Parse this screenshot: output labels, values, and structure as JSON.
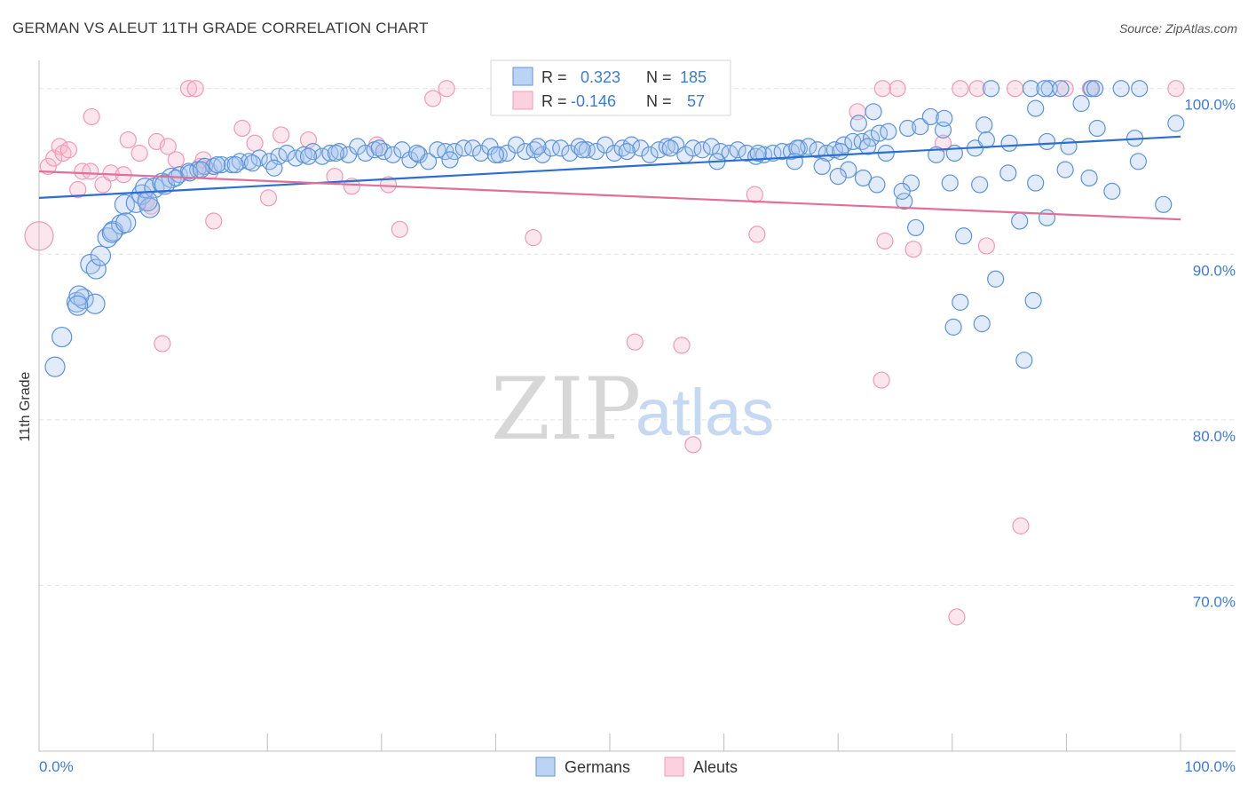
{
  "title": "GERMAN VS ALEUT 11TH GRADE CORRELATION CHART",
  "source": "Source: ZipAtlas.com",
  "watermark": {
    "zip": "ZIP",
    "atlas": "atlas"
  },
  "chart_data": {
    "type": "scatter",
    "ylabel": "11th Grade",
    "xlabel": "",
    "xlim": [
      0,
      100
    ],
    "ylim": [
      60,
      101.7
    ],
    "x_tick_labels": [
      "0.0%",
      "100.0%"
    ],
    "y_ticks": [
      70,
      80,
      90,
      100
    ],
    "y_tick_labels": [
      "70.0%",
      "80.0%",
      "90.0%",
      "100.0%"
    ],
    "grid": true,
    "legend_position": "bottom-center",
    "colors": {
      "Germans": "#5b93dc",
      "Aleuts": "#f09ab8",
      "germans_line": "#2d6fd1",
      "aleuts_line": "#e0709a",
      "grid": "#e4e4e4"
    },
    "stats": [
      {
        "r_label": "R =",
        "r_value": "0.323",
        "n_label": "N =",
        "n_value": "185"
      },
      {
        "r_label": "R =",
        "r_value": "-0.146",
        "n_label": "N =",
        "n_value": "57"
      }
    ],
    "series": [
      {
        "name": "Germans",
        "trend": {
          "x": [
            0,
            100
          ],
          "y": [
            93.4,
            97.1
          ]
        },
        "points": [
          [
            1.4,
            83.2
          ],
          [
            2.0,
            85.0
          ],
          [
            3.3,
            87.1
          ],
          [
            3.9,
            87.3
          ],
          [
            4.9,
            87.0
          ],
          [
            4.5,
            89.4
          ],
          [
            5.0,
            89.1
          ],
          [
            5.4,
            89.9
          ],
          [
            6.0,
            91.0
          ],
          [
            6.5,
            91.4
          ],
          [
            7.2,
            91.8
          ],
          [
            7.5,
            93.0
          ],
          [
            8.5,
            93.1
          ],
          [
            9.0,
            93.6
          ],
          [
            9.7,
            92.8
          ],
          [
            9.3,
            94.0
          ],
          [
            10.1,
            94.0
          ],
          [
            10.8,
            94.3
          ],
          [
            11.6,
            94.6
          ],
          [
            12.3,
            94.8
          ],
          [
            13.1,
            95.0
          ],
          [
            13.9,
            95.1
          ],
          [
            14.5,
            95.3
          ],
          [
            15.3,
            95.3
          ],
          [
            16.0,
            95.4
          ],
          [
            16.9,
            95.4
          ],
          [
            17.6,
            95.6
          ],
          [
            18.4,
            95.6
          ],
          [
            19.3,
            95.8
          ],
          [
            20.2,
            95.6
          ],
          [
            21.0,
            95.9
          ],
          [
            21.7,
            96.1
          ],
          [
            22.5,
            95.8
          ],
          [
            23.2,
            96.0
          ],
          [
            24.0,
            96.2
          ],
          [
            24.8,
            95.9
          ],
          [
            25.5,
            96.1
          ],
          [
            26.3,
            96.2
          ],
          [
            27.1,
            96.0
          ],
          [
            27.9,
            96.5
          ],
          [
            28.6,
            96.1
          ],
          [
            29.4,
            96.3
          ],
          [
            30.2,
            96.2
          ],
          [
            31.0,
            96.0
          ],
          [
            31.8,
            96.3
          ],
          [
            32.5,
            95.7
          ],
          [
            33.3,
            96.0
          ],
          [
            34.1,
            95.6
          ],
          [
            34.9,
            96.3
          ],
          [
            35.6,
            96.2
          ],
          [
            36.4,
            96.2
          ],
          [
            37.2,
            96.4
          ],
          [
            38.0,
            96.4
          ],
          [
            38.7,
            96.1
          ],
          [
            39.5,
            96.5
          ],
          [
            40.3,
            96.0
          ],
          [
            41.0,
            96.1
          ],
          [
            41.8,
            96.6
          ],
          [
            42.6,
            96.2
          ],
          [
            43.4,
            96.3
          ],
          [
            44.1,
            96.0
          ],
          [
            44.9,
            96.4
          ],
          [
            45.7,
            96.4
          ],
          [
            46.5,
            96.1
          ],
          [
            47.3,
            96.5
          ],
          [
            48.0,
            96.3
          ],
          [
            48.8,
            96.2
          ],
          [
            49.6,
            96.6
          ],
          [
            50.4,
            96.1
          ],
          [
            51.1,
            96.4
          ],
          [
            51.9,
            96.6
          ],
          [
            52.7,
            96.4
          ],
          [
            53.5,
            96.0
          ],
          [
            54.3,
            96.3
          ],
          [
            55.0,
            96.5
          ],
          [
            55.8,
            96.6
          ],
          [
            56.6,
            96.0
          ],
          [
            57.3,
            96.4
          ],
          [
            58.1,
            96.3
          ],
          [
            58.9,
            96.5
          ],
          [
            59.7,
            96.2
          ],
          [
            60.5,
            96.1
          ],
          [
            61.2,
            96.3
          ],
          [
            62.0,
            96.1
          ],
          [
            62.8,
            95.9
          ],
          [
            63.5,
            96.0
          ],
          [
            64.3,
            96.1
          ],
          [
            65.1,
            96.2
          ],
          [
            65.9,
            96.2
          ],
          [
            66.6,
            96.4
          ],
          [
            67.4,
            96.5
          ],
          [
            68.2,
            96.3
          ],
          [
            69.0,
            96.1
          ],
          [
            69.7,
            96.3
          ],
          [
            70.5,
            96.6
          ],
          [
            71.3,
            96.8
          ],
          [
            72.1,
            96.8
          ],
          [
            72.9,
            97.0
          ],
          [
            73.6,
            97.3
          ],
          [
            74.4,
            97.4
          ],
          [
            76.1,
            97.6
          ],
          [
            77.2,
            97.7
          ],
          [
            78.1,
            98.3
          ],
          [
            79.2,
            97.5
          ],
          [
            3.5,
            87.5
          ],
          [
            3.4,
            86.9
          ],
          [
            6.4,
            91.3
          ],
          [
            7.6,
            91.9
          ],
          [
            9.5,
            93.2
          ],
          [
            11.0,
            94.2
          ],
          [
            12.0,
            94.6
          ],
          [
            13.2,
            94.9
          ],
          [
            14.2,
            95.1
          ],
          [
            15.6,
            95.4
          ],
          [
            17.2,
            95.4
          ],
          [
            18.7,
            95.5
          ],
          [
            20.6,
            95.2
          ],
          [
            23.6,
            95.9
          ],
          [
            26.0,
            96.1
          ],
          [
            29.8,
            96.4
          ],
          [
            33.1,
            96.1
          ],
          [
            36.0,
            95.7
          ],
          [
            40.0,
            96.0
          ],
          [
            43.7,
            96.5
          ],
          [
            47.6,
            96.3
          ],
          [
            51.5,
            96.2
          ],
          [
            55.3,
            96.4
          ],
          [
            59.4,
            95.6
          ],
          [
            63.0,
            96.1
          ],
          [
            66.4,
            96.4
          ],
          [
            70.2,
            96.2
          ],
          [
            72.6,
            96.5
          ],
          [
            74.2,
            96.1
          ],
          [
            78.6,
            96.0
          ],
          [
            80.2,
            96.1
          ],
          [
            82.0,
            96.4
          ],
          [
            85.0,
            96.7
          ],
          [
            88.3,
            96.8
          ],
          [
            90.2,
            96.5
          ],
          [
            92.7,
            97.6
          ],
          [
            96.0,
            97.0
          ],
          [
            99.6,
            97.9
          ],
          [
            66.2,
            95.6
          ],
          [
            68.6,
            95.3
          ],
          [
            70.9,
            95.1
          ],
          [
            72.2,
            94.6
          ],
          [
            73.4,
            94.2
          ],
          [
            75.8,
            93.2
          ],
          [
            76.4,
            94.3
          ],
          [
            79.8,
            94.3
          ],
          [
            82.4,
            94.2
          ],
          [
            84.9,
            94.9
          ],
          [
            87.3,
            94.3
          ],
          [
            89.9,
            95.1
          ],
          [
            92.0,
            94.6
          ],
          [
            94.0,
            93.8
          ],
          [
            96.3,
            95.6
          ],
          [
            98.5,
            93.0
          ],
          [
            85.9,
            92.0
          ],
          [
            88.3,
            92.2
          ],
          [
            81.0,
            91.1
          ],
          [
            76.8,
            91.6
          ],
          [
            80.1,
            85.6
          ],
          [
            80.7,
            87.1
          ],
          [
            82.6,
            85.8
          ],
          [
            83.8,
            88.5
          ],
          [
            86.3,
            83.6
          ],
          [
            87.1,
            87.2
          ],
          [
            83.4,
            100
          ],
          [
            86.9,
            100
          ],
          [
            88.5,
            100
          ],
          [
            89.5,
            100
          ],
          [
            92.2,
            100
          ],
          [
            92.5,
            100
          ],
          [
            94.8,
            100
          ],
          [
            96.4,
            100
          ],
          [
            88.1,
            100
          ],
          [
            87.3,
            98.8
          ],
          [
            91.3,
            99.1
          ],
          [
            73.1,
            98.6
          ],
          [
            71.8,
            97.9
          ],
          [
            79.3,
            98.2
          ],
          [
            82.8,
            97.8
          ],
          [
            83.0,
            96.9
          ],
          [
            75.6,
            93.8
          ],
          [
            70.0,
            94.7
          ]
        ]
      },
      {
        "name": "Aleuts",
        "trend": {
          "x": [
            0,
            100
          ],
          "y": [
            95.0,
            92.1
          ]
        },
        "points": [
          [
            0.0,
            91.1
          ],
          [
            0.8,
            95.3
          ],
          [
            1.3,
            95.8
          ],
          [
            1.8,
            96.5
          ],
          [
            2.1,
            96.1
          ],
          [
            2.6,
            96.3
          ],
          [
            3.4,
            93.9
          ],
          [
            3.8,
            95.0
          ],
          [
            4.5,
            95.0
          ],
          [
            4.6,
            98.3
          ],
          [
            5.6,
            94.2
          ],
          [
            6.3,
            94.9
          ],
          [
            7.4,
            94.8
          ],
          [
            7.8,
            96.9
          ],
          [
            8.8,
            96.1
          ],
          [
            9.4,
            93.2
          ],
          [
            9.8,
            92.9
          ],
          [
            10.3,
            96.8
          ],
          [
            10.8,
            84.6
          ],
          [
            11.3,
            96.5
          ],
          [
            12.0,
            95.7
          ],
          [
            13.1,
            100
          ],
          [
            13.7,
            100
          ],
          [
            14.1,
            95.3
          ],
          [
            14.4,
            95.7
          ],
          [
            15.3,
            92.0
          ],
          [
            15.0,
            95.0
          ],
          [
            17.8,
            97.6
          ],
          [
            18.9,
            96.7
          ],
          [
            20.1,
            93.4
          ],
          [
            21.2,
            97.2
          ],
          [
            23.6,
            96.9
          ],
          [
            25.9,
            94.7
          ],
          [
            27.4,
            94.1
          ],
          [
            29.6,
            96.6
          ],
          [
            30.6,
            94.2
          ],
          [
            31.6,
            91.5
          ],
          [
            34.5,
            99.4
          ],
          [
            35.7,
            100
          ],
          [
            43.3,
            91.0
          ],
          [
            47.8,
            100
          ],
          [
            52.2,
            84.7
          ],
          [
            55.6,
            100
          ],
          [
            56.3,
            84.5
          ],
          [
            57.3,
            78.5
          ],
          [
            62.7,
            93.6
          ],
          [
            62.9,
            91.2
          ],
          [
            71.7,
            98.6
          ],
          [
            73.9,
            100
          ],
          [
            73.8,
            82.4
          ],
          [
            74.1,
            90.8
          ],
          [
            75.2,
            100
          ],
          [
            76.6,
            90.3
          ],
          [
            79.2,
            96.7
          ],
          [
            80.4,
            68.1
          ],
          [
            80.7,
            100
          ],
          [
            82.2,
            100
          ],
          [
            83.0,
            90.5
          ],
          [
            85.5,
            100
          ],
          [
            86.0,
            73.6
          ],
          [
            89.9,
            100
          ],
          [
            92.1,
            100
          ],
          [
            99.6,
            100
          ]
        ]
      }
    ]
  },
  "legend": [
    {
      "label": "Germans",
      "color": "#5b93dc"
    },
    {
      "label": "Aleuts",
      "color": "#f09ab8"
    }
  ]
}
